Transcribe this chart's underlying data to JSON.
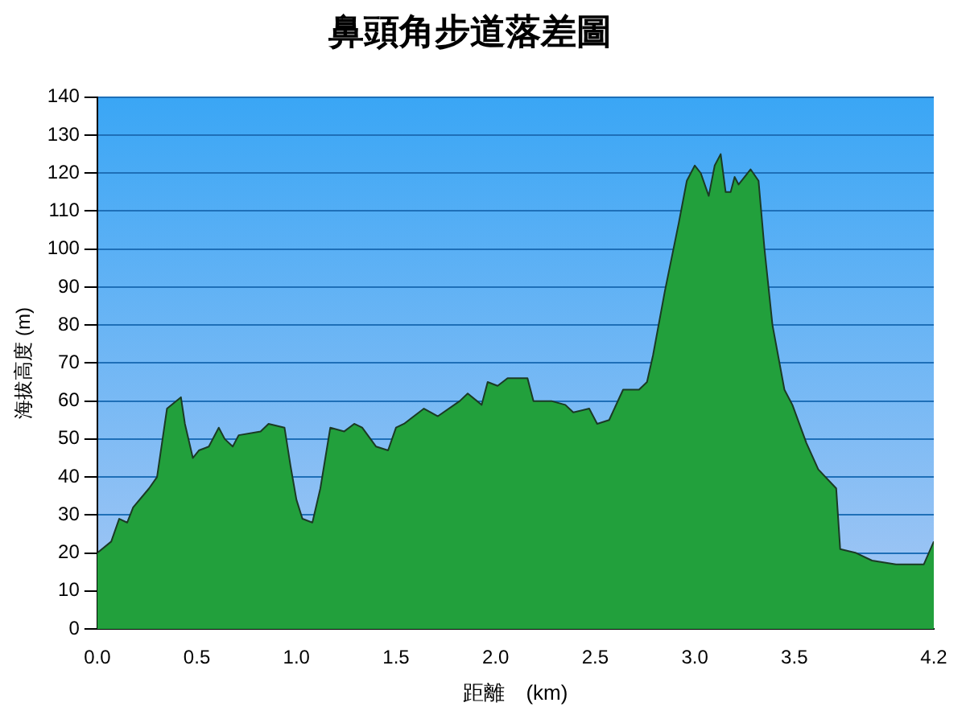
{
  "chart_data": {
    "type": "area",
    "title": "鼻頭角步道落差圖",
    "xlabel": "距離　(km)",
    "ylabel": "海拔高度 (m)",
    "xlim": [
      0,
      4.2
    ],
    "xticks": [
      {
        "value": 0,
        "label": "0.0"
      },
      0.5,
      {
        "value": 1,
        "label": "1.0"
      },
      1.5,
      {
        "value": 2,
        "label": "2.0"
      },
      2.5,
      {
        "value": 3,
        "label": "3.0"
      },
      3.5,
      4.2
    ],
    "ylim": [
      0,
      140
    ],
    "yticks": [
      0,
      10,
      20,
      30,
      40,
      50,
      60,
      70,
      80,
      90,
      100,
      110,
      120,
      130,
      140
    ],
    "grid": "y",
    "legend": false,
    "series": [
      {
        "color": "#22a03c",
        "x": [
          0,
          0.07,
          0.11,
          0.15,
          0.18,
          0.26,
          0.3,
          0.35,
          0.42,
          0.44,
          0.48,
          0.51,
          0.56,
          0.61,
          0.64,
          0.68,
          0.71,
          0.82,
          0.86,
          0.94,
          0.97,
          1.0,
          1.03,
          1.08,
          1.12,
          1.17,
          1.24,
          1.29,
          1.33,
          1.4,
          1.46,
          1.5,
          1.54,
          1.64,
          1.71,
          1.82,
          1.86,
          1.93,
          1.96,
          2.01,
          2.06,
          2.16,
          2.19,
          2.28,
          2.35,
          2.39,
          2.47,
          2.51,
          2.57,
          2.64,
          2.72,
          2.76,
          2.79,
          2.85,
          2.92,
          2.96,
          3.0,
          3.03,
          3.07,
          3.1,
          3.13,
          3.155,
          3.18,
          3.2,
          3.22,
          3.28,
          3.32,
          3.35,
          3.39,
          3.45,
          3.49,
          3.56,
          3.62,
          3.71,
          3.73,
          3.81,
          3.89,
          4.01,
          4.15,
          4.2
        ],
        "values": [
          20,
          23,
          29,
          28,
          32,
          37,
          40,
          58,
          61,
          54,
          45,
          47,
          48,
          53,
          50,
          48,
          51,
          52,
          54,
          53,
          43,
          34,
          29,
          28,
          37,
          53,
          52,
          54,
          53,
          48,
          47,
          53,
          54,
          58,
          56,
          60,
          62,
          59,
          65,
          64,
          66,
          66,
          60,
          60,
          59,
          57,
          58,
          54,
          55,
          63,
          63,
          65,
          72,
          89,
          107,
          118,
          122,
          120,
          114,
          122,
          125,
          115,
          115,
          119,
          117,
          121,
          118,
          100,
          80,
          63,
          59,
          49,
          42,
          37,
          21,
          20,
          18,
          17,
          17,
          23
        ]
      }
    ]
  }
}
